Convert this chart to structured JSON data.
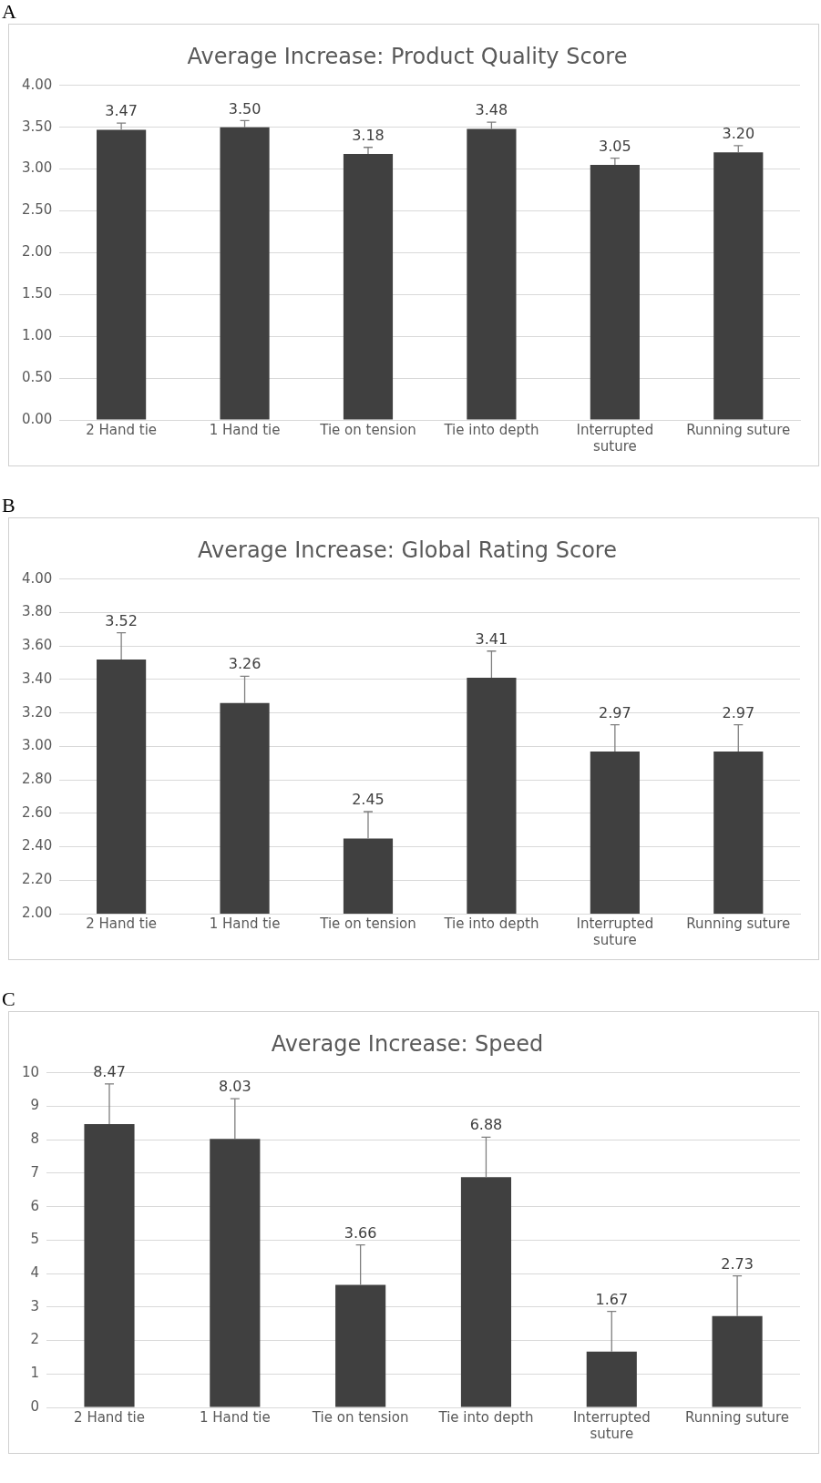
{
  "chart_data": [
    {
      "type": "bar",
      "title": "Average Increase: Product Quality Score",
      "annotations": [
        "A"
      ],
      "categories": [
        "2 Hand tie",
        "1 Hand tie",
        "Tie on tension",
        "Tie into depth",
        "Interrupted suture",
        "Running suture"
      ],
      "values": [
        3.47,
        3.5,
        3.18,
        3.48,
        3.05,
        3.2
      ],
      "color": "#404040",
      "errors": [
        0.08,
        0.08,
        0.08,
        0.08,
        0.08,
        0.08
      ],
      "value_labels": [
        "3.47",
        "3.50",
        "3.18",
        "3.48",
        "3.05",
        "3.20"
      ],
      "ylim": [
        0,
        4
      ],
      "yticks": [
        {
          "value": 0,
          "label": "0.00"
        },
        {
          "value": 0.5,
          "label": "0.50"
        },
        {
          "value": 1,
          "label": "1.00"
        },
        {
          "value": 1.5,
          "label": "1.50"
        },
        {
          "value": 2,
          "label": "2.00"
        },
        {
          "value": 2.5,
          "label": "2.50"
        },
        {
          "value": 3,
          "label": "3.00"
        },
        {
          "value": 3.5,
          "label": "3.50"
        },
        {
          "value": 4,
          "label": "4.00"
        }
      ],
      "grid": "y"
    },
    {
      "type": "bar",
      "title": "Average Increase: Global Rating Score",
      "annotations": [
        "B"
      ],
      "categories": [
        "2 Hand tie",
        "1 Hand tie",
        "Tie on tension",
        "Tie into depth",
        "Interrupted suture",
        "Running suture"
      ],
      "values": [
        3.52,
        3.26,
        2.45,
        3.41,
        2.97,
        2.97
      ],
      "color": "#404040",
      "errors": [
        0.16,
        0.16,
        0.16,
        0.16,
        0.16,
        0.16
      ],
      "value_labels": [
        "3.52",
        "3.26",
        "2.45",
        "3.41",
        "2.97",
        "2.97"
      ],
      "ylim": [
        2,
        4
      ],
      "yticks": [
        {
          "value": 2,
          "label": "2.00"
        },
        {
          "value": 2.2,
          "label": "2.20"
        },
        {
          "value": 2.4,
          "label": "2.40"
        },
        {
          "value": 2.6,
          "label": "2.60"
        },
        {
          "value": 2.8,
          "label": "2.80"
        },
        {
          "value": 3,
          "label": "3.00"
        },
        {
          "value": 3.2,
          "label": "3.20"
        },
        {
          "value": 3.4,
          "label": "3.40"
        },
        {
          "value": 3.6,
          "label": "3.60"
        },
        {
          "value": 3.8,
          "label": "3.80"
        },
        {
          "value": 4,
          "label": "4.00"
        }
      ],
      "grid": "y"
    },
    {
      "type": "bar",
      "title": "Average Increase: Speed",
      "annotations": [
        "C"
      ],
      "categories": [
        "2 Hand tie",
        "1 Hand tie",
        "Tie on tension",
        "Tie into depth",
        "Interrupted suture",
        "Running suture"
      ],
      "values": [
        8.47,
        8.03,
        3.66,
        6.88,
        1.67,
        2.73
      ],
      "color": "#404040",
      "errors": [
        1.2,
        1.2,
        1.2,
        1.2,
        1.2,
        1.2
      ],
      "value_labels": [
        "8.47",
        "8.03",
        "3.66",
        "6.88",
        "1.67",
        "2.73"
      ],
      "ylim": [
        0,
        10
      ],
      "yticks": [
        0,
        1,
        2,
        3,
        4,
        5,
        6,
        7,
        8,
        9,
        10
      ],
      "grid": "y"
    }
  ]
}
